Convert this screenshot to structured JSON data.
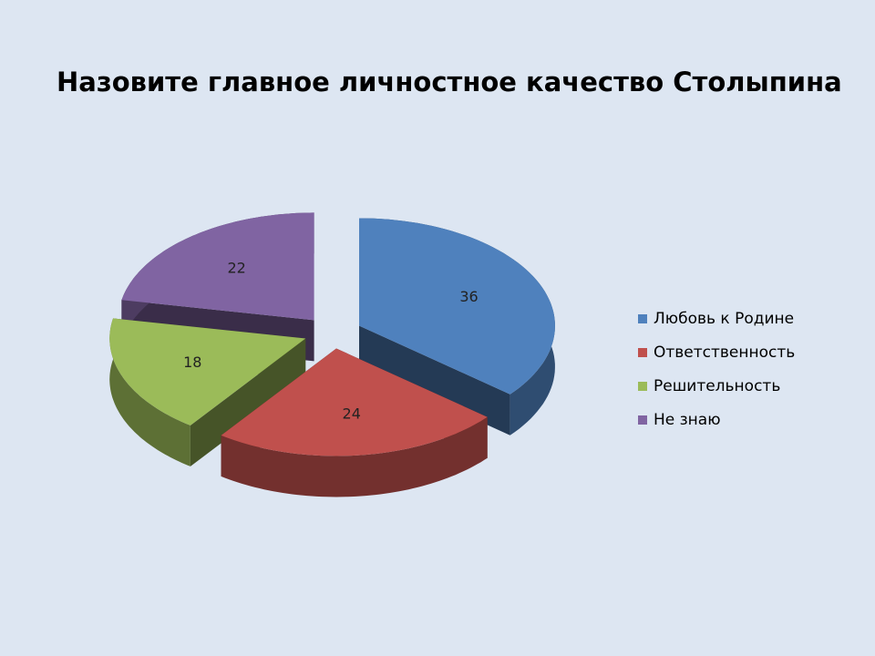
{
  "chart_data": {
    "type": "pie",
    "title": "Назовите главное личностное качество Столыпина",
    "categories": [
      "Любовь к Родине",
      "Ответственность",
      "Решительность",
      "Не знаю"
    ],
    "values": [
      36,
      24,
      18,
      22
    ],
    "colors": [
      "#4f81bd",
      "#c0504d",
      "#9bbb59",
      "#8064a2"
    ],
    "legend": "right"
  }
}
